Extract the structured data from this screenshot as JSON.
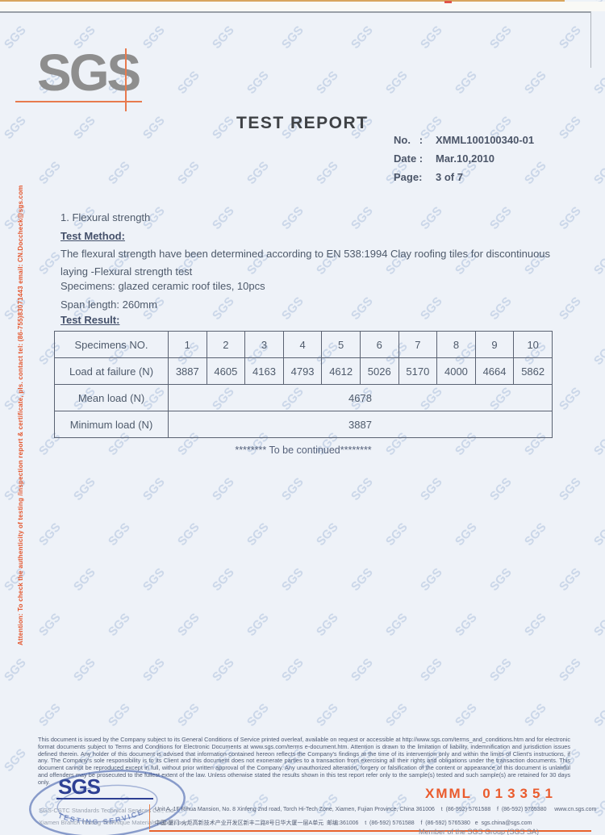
{
  "page": {
    "watermark_text": "SGS"
  },
  "header": {
    "logo_text": "SGS",
    "title": "TEST REPORT",
    "meta": {
      "no_label": "No.   :",
      "no_value": "XMML100100340-01",
      "date_label": "Date :",
      "date_value": "Mar.10,2010",
      "page_label": "Page:",
      "page_value": "3 of 7"
    }
  },
  "body": {
    "section_title": "1. Flexural strength",
    "method_heading": "Test Method:",
    "method_line1": "The flexural strength have been determined according to EN 538:1994 Clay roofing tiles for discontinuous",
    "method_line2": "laying -Flexural strength test",
    "specimens_line": "Specimens: glazed ceramic roof tiles, 10pcs",
    "span_line": "Span length: 260mm",
    "result_heading": "Test Result:",
    "continued": "******** To be continued********"
  },
  "table": {
    "specimens_label": "Specimens NO.",
    "specimen_numbers": [
      "1",
      "2",
      "3",
      "4",
      "5",
      "6",
      "7",
      "8",
      "9",
      "10"
    ],
    "load_label": "Load at failure (N)",
    "load_values": [
      "3887",
      "4605",
      "4163",
      "4793",
      "4612",
      "5026",
      "5170",
      "4000",
      "4664",
      "5862"
    ],
    "mean_label": "Mean load (N)",
    "mean_value": "4678",
    "min_label": "Minimum load (N)",
    "min_value": "3887"
  },
  "side_note": "Attention: To check the authenticity of testing /inspection report & certificate, pls. contact tel: (86-755)83071443 email: CN.Doccheck@sgs.com",
  "footer": {
    "disclaimer": "This document is issued by the Company subject to its General Conditions of Service printed overleaf, available on request or accessible at http://www.sgs.com/terms_and_conditions.htm and for electronic format documents subject to Terms and Conditions for Electronic Documents at www.sgs.com/terms e-document.htm. Attention is drawn to the limitation of liability, indemnification and jurisdiction issues defined therein. Any holder of this document is advised that information contained hereon reflects the Company's findings at the time of its intervention only and within the limits of Client's instructions, if any. The Company's sole responsibility is to its Client and this document does not exonerate parties to a transaction from exercising all their rights and obligations under the transaction documents. This document cannot be reproduced except in full, without prior written approval of the Company. Any unauthorized alteration, forgery or falsification of the content or appearance of this document is unlawful and offenders may be prosecuted to the fullest extent of the law. Unless otherwise stated the results shown in this test report refer only to the sample(s) tested and such sample(s) are retained for 30 days only.",
    "logo_text": "SGS",
    "stamp_text": "TESTING SERVICE",
    "company_line1": "SGS-CSTC Standards Technical Services Co., Ltd.",
    "company_line2": "Xiamen Branch Testing Technique Materials Laboratory",
    "address_en": "Unit A, 1F Rihua Mansion, No. 8 Xinfeng 2nd road, Torch Hi-Tech Zone, Xiamen, Fujian Province, China 361006    t  (86-592) 5761588    f  (86-592) 5765380     www.cn.sgs.com",
    "address_cn": "中国·厦门·火炬高新技术产业开发区新丰二路8号日华大厦一层A单元  邮编:361006    t  (86-592) 5761588    f  (86-592) 5765380   e  sgs.china@sgs.com",
    "serial_prefix": "XMML  ",
    "serial_number": "013351",
    "member": "Member of the SGS Group (SGS SA)"
  }
}
